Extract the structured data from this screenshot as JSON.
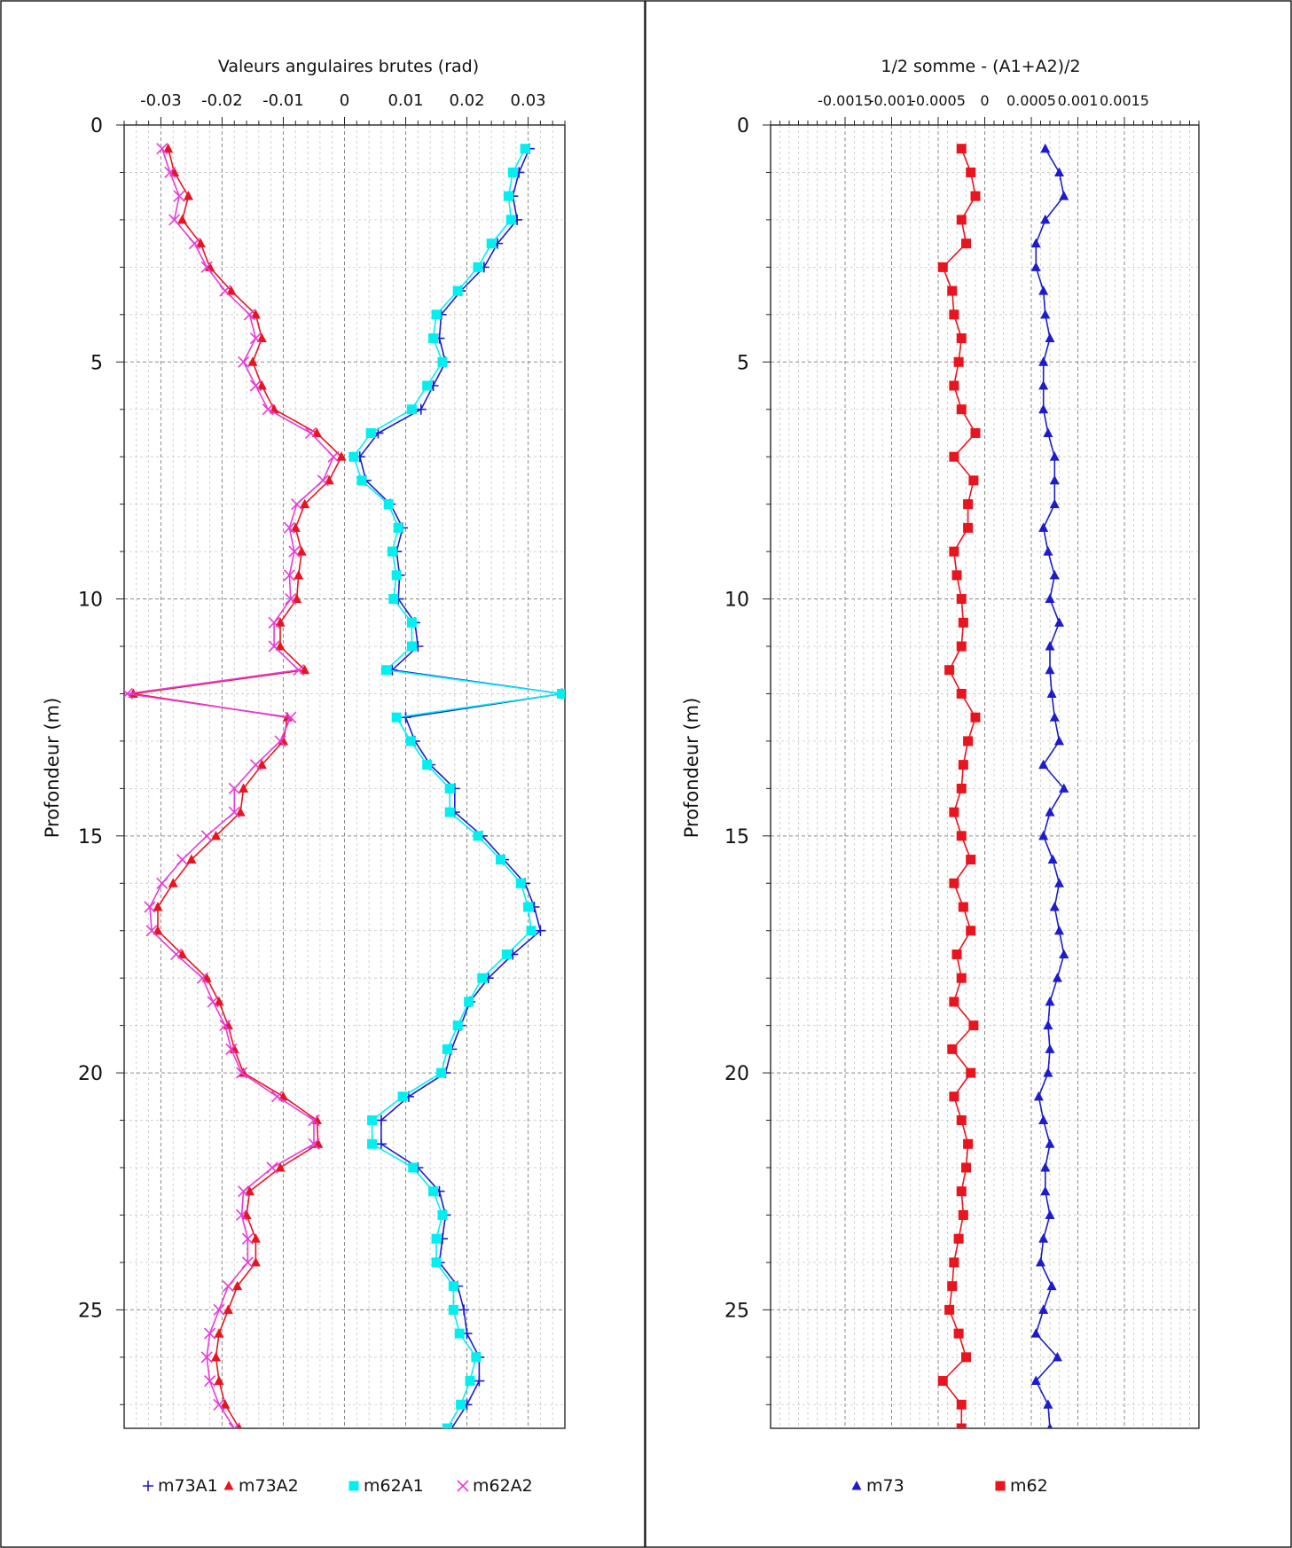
{
  "chart_data": [
    {
      "type": "line",
      "title": "",
      "xlabel": "Valeurs angulaires brutes (rad)",
      "ylabel": "Profondeur (m)",
      "xlim": [
        -0.036,
        0.036
      ],
      "ylim": [
        0,
        27.5
      ],
      "y_inverted": true,
      "x_axis_position": "top",
      "x_ticks": [
        -0.03,
        -0.02,
        -0.01,
        0,
        0.01,
        0.02,
        0.03
      ],
      "x_tick_labels": [
        "-0.03",
        "-0.02",
        "-0.01",
        "0",
        "0.01",
        "0.02",
        "0.03"
      ],
      "y_ticks": [
        0,
        5,
        10,
        15,
        20,
        25
      ],
      "y_tick_labels": [
        "0",
        "5",
        "10",
        "15",
        "20",
        "25"
      ],
      "grid": true,
      "legend_position": "bottom",
      "depths": [
        0.5,
        1,
        1.5,
        2,
        2.5,
        3,
        3.5,
        4,
        4.5,
        5,
        5.5,
        6,
        6.5,
        7,
        7.5,
        8,
        8.5,
        9,
        9.5,
        10,
        10.5,
        11,
        11.5,
        12,
        12.5,
        13,
        13.5,
        14,
        14.5,
        15,
        15.5,
        16,
        16.5,
        17,
        17.5,
        18,
        18.5,
        19,
        19.5,
        20,
        20.5,
        21,
        21.5,
        22,
        22.5,
        23,
        23.5,
        24,
        24.5,
        25,
        25.5,
        26,
        26.5,
        27,
        27.5
      ],
      "series": [
        {
          "name": "m73A1",
          "color": "#1c1ccc",
          "marker": "plus",
          "x": [
            0.0302,
            0.0285,
            0.0275,
            0.0282,
            0.025,
            0.0228,
            0.019,
            0.0158,
            0.0155,
            0.0165,
            0.0145,
            0.0125,
            0.0055,
            0.0025,
            0.0035,
            0.0075,
            0.0095,
            0.0085,
            0.009,
            0.0088,
            0.0115,
            0.012,
            0.0078,
            0.0355,
            0.01,
            0.0115,
            0.014,
            0.018,
            0.018,
            0.0225,
            0.026,
            0.0295,
            0.031,
            0.032,
            0.0275,
            0.0235,
            0.0205,
            0.019,
            0.0175,
            0.0165,
            0.0105,
            0.006,
            0.006,
            0.012,
            0.0155,
            0.0165,
            0.016,
            0.0155,
            0.0185,
            0.0195,
            0.02,
            0.022,
            0.022,
            0.02,
            0.0175
          ]
        },
        {
          "name": "m73A2",
          "color": "#e8141e",
          "marker": "triangle",
          "x": [
            -0.0288,
            -0.0278,
            -0.0255,
            -0.0265,
            -0.0235,
            -0.022,
            -0.0185,
            -0.0145,
            -0.0135,
            -0.015,
            -0.0135,
            -0.0115,
            -0.0045,
            -0.0005,
            -0.0025,
            -0.0065,
            -0.008,
            -0.007,
            -0.0075,
            -0.0078,
            -0.0105,
            -0.0105,
            -0.0065,
            -0.0345,
            -0.0093,
            -0.01,
            -0.0135,
            -0.0165,
            -0.017,
            -0.021,
            -0.025,
            -0.028,
            -0.0305,
            -0.0305,
            -0.0265,
            -0.0225,
            -0.0205,
            -0.019,
            -0.018,
            -0.0165,
            -0.01,
            -0.0045,
            -0.0043,
            -0.0105,
            -0.0155,
            -0.016,
            -0.0145,
            -0.0145,
            -0.0175,
            -0.019,
            -0.0205,
            -0.021,
            -0.0205,
            -0.0195,
            -0.0172
          ]
        },
        {
          "name": "m62A1",
          "color": "#00f0f0",
          "marker": "square",
          "x": [
            0.0295,
            0.0275,
            0.0268,
            0.0272,
            0.024,
            0.0218,
            0.0185,
            0.015,
            0.0145,
            0.016,
            0.0135,
            0.011,
            0.0043,
            0.0015,
            0.0028,
            0.0072,
            0.0088,
            0.0078,
            0.0085,
            0.008,
            0.011,
            0.011,
            0.0068,
            0.0355,
            0.0085,
            0.0108,
            0.0135,
            0.0172,
            0.0172,
            0.0218,
            0.0255,
            0.0288,
            0.03,
            0.0305,
            0.0265,
            0.0225,
            0.0203,
            0.0185,
            0.0168,
            0.0158,
            0.0095,
            0.0045,
            0.0045,
            0.0112,
            0.0145,
            0.016,
            0.015,
            0.015,
            0.0178,
            0.0178,
            0.0188,
            0.0215,
            0.0205,
            0.019,
            0.0168
          ]
        },
        {
          "name": "m62A2",
          "color": "#e83ad8",
          "marker": "x",
          "x": [
            -0.0298,
            -0.0285,
            -0.027,
            -0.0278,
            -0.0245,
            -0.0225,
            -0.0195,
            -0.0155,
            -0.0145,
            -0.0165,
            -0.0145,
            -0.0125,
            -0.0055,
            -0.0018,
            -0.0035,
            -0.0078,
            -0.009,
            -0.0082,
            -0.009,
            -0.0088,
            -0.0115,
            -0.0115,
            -0.0075,
            -0.0355,
            -0.0088,
            -0.0105,
            -0.0145,
            -0.018,
            -0.018,
            -0.0225,
            -0.0265,
            -0.0298,
            -0.0318,
            -0.0315,
            -0.0275,
            -0.0232,
            -0.0215,
            -0.0195,
            -0.0185,
            -0.0168,
            -0.011,
            -0.005,
            -0.005,
            -0.0118,
            -0.0165,
            -0.0168,
            -0.0158,
            -0.0158,
            -0.019,
            -0.0205,
            -0.022,
            -0.0225,
            -0.022,
            -0.0205,
            -0.018
          ]
        }
      ]
    },
    {
      "type": "line",
      "title": "",
      "xlabel": "1/2 somme - (A1+A2)/2",
      "ylabel": "Profondeur (m)",
      "xlim": [
        -0.0023,
        0.0023
      ],
      "ylim": [
        0,
        27.5
      ],
      "y_inverted": true,
      "x_axis_position": "top",
      "x_ticks": [
        -0.0015,
        -0.001,
        -0.0005,
        0,
        0.0005,
        0.001,
        0.0015
      ],
      "x_tick_labels": [
        "-0.0015",
        "-0.001",
        "-0.0005",
        "0",
        "0.0005",
        "0.001",
        "0.0015"
      ],
      "y_ticks": [
        0,
        5,
        10,
        15,
        20,
        25
      ],
      "y_tick_labels": [
        "0",
        "5",
        "10",
        "15",
        "20",
        "25"
      ],
      "grid": true,
      "legend_position": "bottom",
      "depths": [
        0.5,
        1,
        1.5,
        2,
        2.5,
        3,
        3.5,
        4,
        4.5,
        5,
        5.5,
        6,
        6.5,
        7,
        7.5,
        8,
        8.5,
        9,
        9.5,
        10,
        10.5,
        11,
        11.5,
        12,
        12.5,
        13,
        13.5,
        14,
        14.5,
        15,
        15.5,
        16,
        16.5,
        17,
        17.5,
        18,
        18.5,
        19,
        19.5,
        20,
        20.5,
        21,
        21.5,
        22,
        22.5,
        23,
        23.5,
        24,
        24.5,
        25,
        25.5,
        26,
        26.5,
        27,
        27.5
      ],
      "series": [
        {
          "name": "m73",
          "color": "#1c1ccc",
          "marker": "triangle",
          "x": [
            0.00065,
            0.0008,
            0.00085,
            0.00065,
            0.00055,
            0.00055,
            0.00063,
            0.00065,
            0.0007,
            0.00063,
            0.00063,
            0.00063,
            0.00068,
            0.00075,
            0.00075,
            0.00075,
            0.00063,
            0.00068,
            0.00075,
            0.0007,
            0.0008,
            0.0007,
            0.0007,
            0.00072,
            0.00075,
            0.0008,
            0.00063,
            0.00085,
            0.0007,
            0.00063,
            0.00073,
            0.0008,
            0.00075,
            0.0008,
            0.00085,
            0.00078,
            0.0007,
            0.00068,
            0.0007,
            0.00068,
            0.00058,
            0.00063,
            0.0007,
            0.00065,
            0.00065,
            0.0007,
            0.00063,
            0.0006,
            0.00072,
            0.00063,
            0.00055,
            0.00078,
            0.00055,
            0.00068,
            0.0007
          ]
        },
        {
          "name": "m62",
          "color": "#e8141e",
          "marker": "square",
          "x": [
            -0.00025,
            -0.00015,
            -0.0001,
            -0.00025,
            -0.0002,
            -0.00045,
            -0.00035,
            -0.00033,
            -0.00025,
            -0.00028,
            -0.00033,
            -0.00025,
            -0.0001,
            -0.00033,
            -0.00012,
            -0.00018,
            -0.00018,
            -0.00033,
            -0.0003,
            -0.00025,
            -0.00023,
            -0.00025,
            -0.00038,
            -0.00025,
            -0.0001,
            -0.00018,
            -0.00023,
            -0.00025,
            -0.00033,
            -0.00025,
            -0.00015,
            -0.00033,
            -0.00023,
            -0.00015,
            -0.0003,
            -0.00025,
            -0.00033,
            -0.00012,
            -0.00035,
            -0.00015,
            -0.00033,
            -0.00025,
            -0.00018,
            -0.0002,
            -0.00025,
            -0.00023,
            -0.00028,
            -0.00033,
            -0.00035,
            -0.00038,
            -0.00028,
            -0.0002,
            -0.00045,
            -0.00025,
            -0.00025
          ]
        }
      ]
    }
  ]
}
